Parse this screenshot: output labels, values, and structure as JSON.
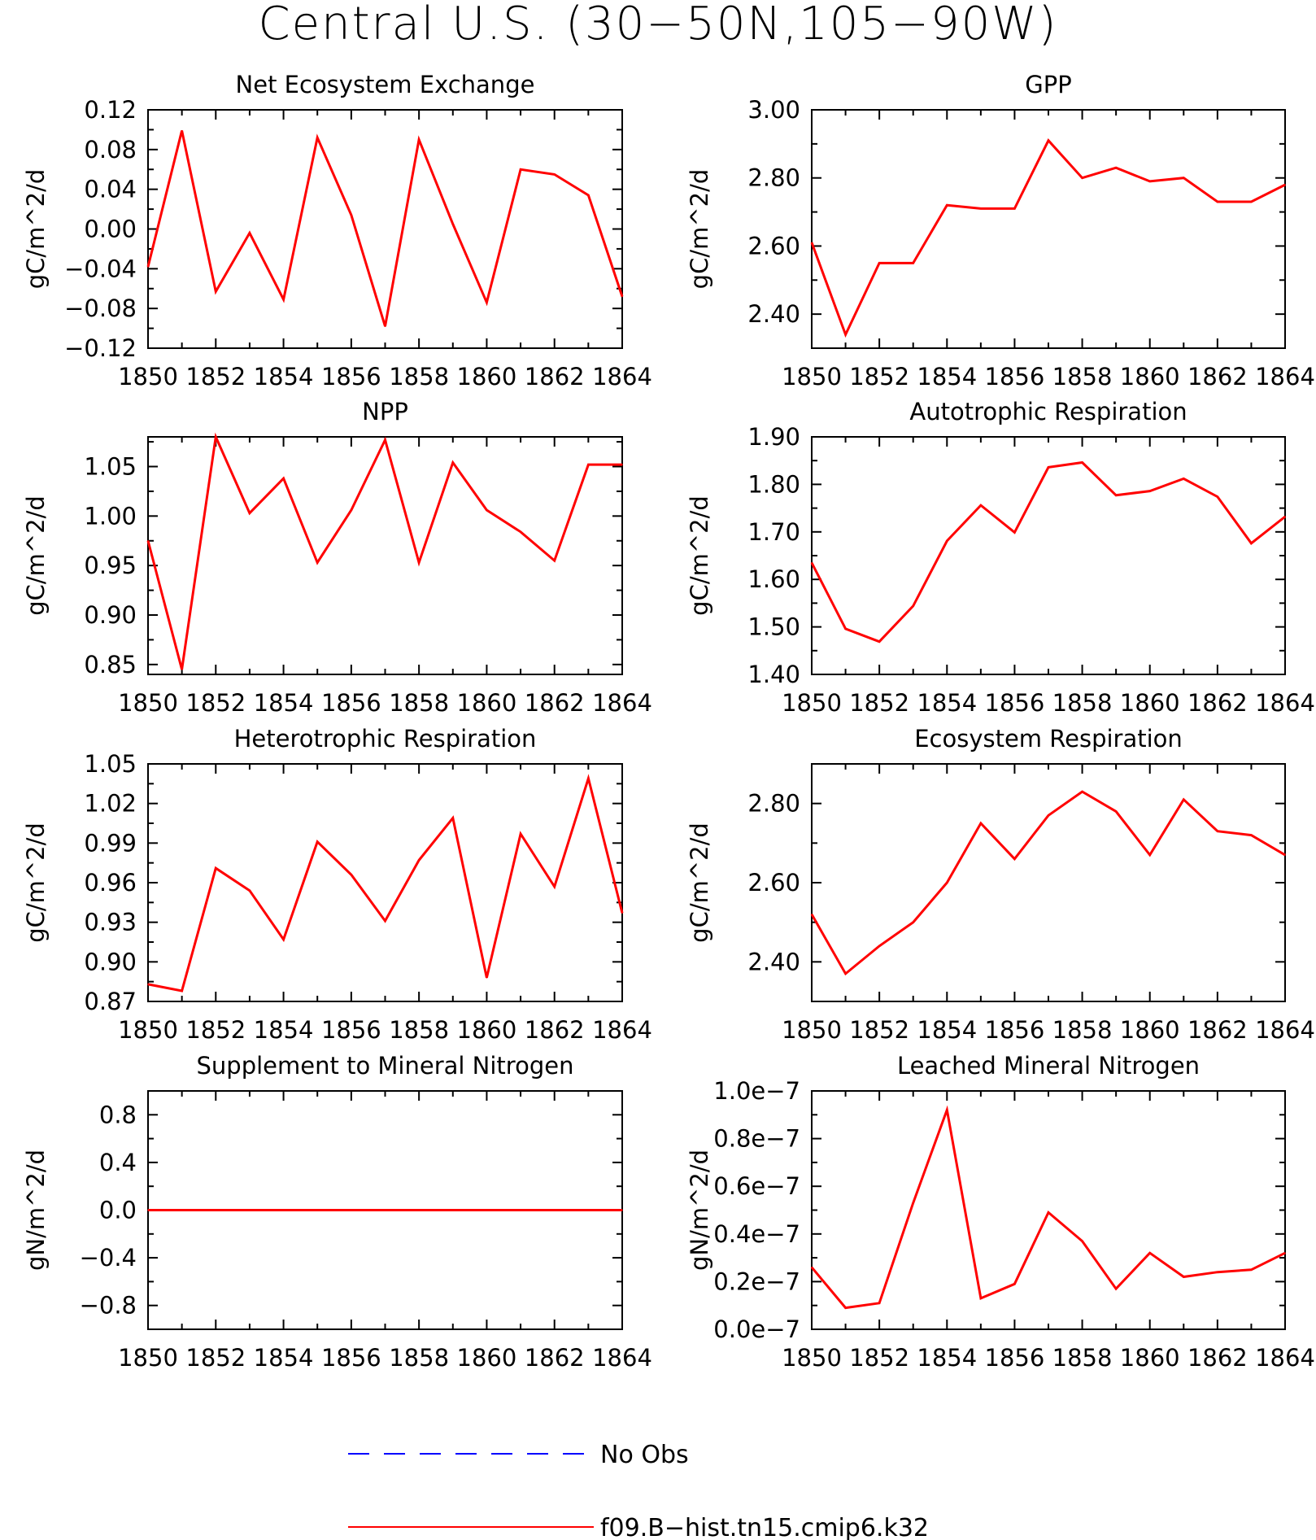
{
  "title": "Central U.S. (30−50N,105−90W)",
  "legend": {
    "items": [
      {
        "label": "No Obs",
        "color": "#0000ff",
        "dash": true
      },
      {
        "label": "f09.B−hist.tn15.cmip6.k32",
        "color": "#ff0000",
        "dash": false
      }
    ]
  },
  "chart_data": [
    {
      "type": "line",
      "title": "Net Ecosystem Exchange",
      "ylabel": "gC/m^2/d",
      "xlim": [
        1850,
        1864
      ],
      "ylim": [
        -0.12,
        0.12
      ],
      "xticks": [
        "1850",
        "1852",
        "1854",
        "1856",
        "1858",
        "1860",
        "1862",
        "1864"
      ],
      "yticks": [
        {
          "v": 0.12,
          "l": "0.12"
        },
        {
          "v": 0.08,
          "l": "0.08"
        },
        {
          "v": 0.04,
          "l": "0.04"
        },
        {
          "v": 0.0,
          "l": "0.00"
        },
        {
          "v": -0.04,
          "l": "−0.04"
        },
        {
          "v": -0.08,
          "l": "−0.08"
        },
        {
          "v": -0.12,
          "l": "−0.12"
        }
      ],
      "series": [
        {
          "color": "#ff0000",
          "x": [
            1850,
            1851,
            1852,
            1853,
            1854,
            1855,
            1856,
            1857,
            1858,
            1859,
            1860,
            1861,
            1862,
            1863,
            1864
          ],
          "y": [
            -0.038,
            0.099,
            -0.063,
            -0.004,
            -0.071,
            0.092,
            0.014,
            -0.098,
            0.09,
            0.005,
            -0.074,
            0.06,
            0.055,
            0.034,
            -0.068
          ]
        }
      ]
    },
    {
      "type": "line",
      "title": "GPP",
      "ylabel": "gC/m^2/d",
      "xlim": [
        1850,
        1864
      ],
      "ylim": [
        2.3,
        3.0
      ],
      "xticks": [
        "1850",
        "1852",
        "1854",
        "1856",
        "1858",
        "1860",
        "1862",
        "1864"
      ],
      "yticks": [
        {
          "v": 3.0,
          "l": "3.00"
        },
        {
          "v": 2.8,
          "l": "2.80"
        },
        {
          "v": 2.6,
          "l": "2.60"
        },
        {
          "v": 2.4,
          "l": "2.40"
        }
      ],
      "series": [
        {
          "color": "#ff0000",
          "x": [
            1850,
            1851,
            1852,
            1853,
            1854,
            1855,
            1856,
            1857,
            1858,
            1859,
            1860,
            1861,
            1862,
            1863,
            1864
          ],
          "y": [
            2.61,
            2.34,
            2.55,
            2.55,
            2.72,
            2.71,
            2.71,
            2.91,
            2.8,
            2.83,
            2.79,
            2.8,
            2.73,
            2.73,
            2.78
          ]
        }
      ]
    },
    {
      "type": "line",
      "title": "NPP",
      "ylabel": "gC/m^2/d",
      "xlim": [
        1850,
        1864
      ],
      "ylim": [
        0.84,
        1.08
      ],
      "xticks": [
        "1850",
        "1852",
        "1854",
        "1856",
        "1858",
        "1860",
        "1862",
        "1864"
      ],
      "yticks": [
        {
          "v": 1.05,
          "l": "1.05"
        },
        {
          "v": 1.0,
          "l": "1.00"
        },
        {
          "v": 0.95,
          "l": "0.95"
        },
        {
          "v": 0.9,
          "l": "0.90"
        },
        {
          "v": 0.85,
          "l": "0.85"
        }
      ],
      "series": [
        {
          "color": "#ff0000",
          "x": [
            1850,
            1851,
            1852,
            1853,
            1854,
            1855,
            1856,
            1857,
            1858,
            1859,
            1860,
            1861,
            1862,
            1863,
            1864
          ],
          "y": [
            0.975,
            0.845,
            1.08,
            1.003,
            1.038,
            0.953,
            1.006,
            1.077,
            0.953,
            1.054,
            1.006,
            0.984,
            0.955,
            1.052,
            1.052
          ]
        }
      ]
    },
    {
      "type": "line",
      "title": "Autotrophic Respiration",
      "ylabel": "gC/m^2/d",
      "xlim": [
        1850,
        1864
      ],
      "ylim": [
        1.4,
        1.9
      ],
      "xticks": [
        "1850",
        "1852",
        "1854",
        "1856",
        "1858",
        "1860",
        "1862",
        "1864"
      ],
      "yticks": [
        {
          "v": 1.9,
          "l": "1.90"
        },
        {
          "v": 1.8,
          "l": "1.80"
        },
        {
          "v": 1.7,
          "l": "1.70"
        },
        {
          "v": 1.6,
          "l": "1.60"
        },
        {
          "v": 1.5,
          "l": "1.50"
        },
        {
          "v": 1.4,
          "l": "1.40"
        }
      ],
      "series": [
        {
          "color": "#ff0000",
          "x": [
            1850,
            1851,
            1852,
            1853,
            1854,
            1855,
            1856,
            1857,
            1858,
            1859,
            1860,
            1861,
            1862,
            1863,
            1864
          ],
          "y": [
            1.635,
            1.496,
            1.469,
            1.544,
            1.681,
            1.756,
            1.699,
            1.836,
            1.846,
            1.777,
            1.786,
            1.812,
            1.774,
            1.676,
            1.732
          ]
        }
      ]
    },
    {
      "type": "line",
      "title": "Heterotrophic Respiration",
      "ylabel": "gC/m^2/d",
      "xlim": [
        1850,
        1864
      ],
      "ylim": [
        0.87,
        1.05
      ],
      "xticks": [
        "1850",
        "1852",
        "1854",
        "1856",
        "1858",
        "1860",
        "1862",
        "1864"
      ],
      "yticks": [
        {
          "v": 1.05,
          "l": "1.05"
        },
        {
          "v": 1.02,
          "l": "1.02"
        },
        {
          "v": 0.99,
          "l": "0.99"
        },
        {
          "v": 0.96,
          "l": "0.96"
        },
        {
          "v": 0.93,
          "l": "0.93"
        },
        {
          "v": 0.9,
          "l": "0.90"
        },
        {
          "v": 0.87,
          "l": "0.87"
        }
      ],
      "series": [
        {
          "color": "#ff0000",
          "x": [
            1850,
            1851,
            1852,
            1853,
            1854,
            1855,
            1856,
            1857,
            1858,
            1859,
            1860,
            1861,
            1862,
            1863,
            1864
          ],
          "y": [
            0.883,
            0.878,
            0.971,
            0.954,
            0.917,
            0.991,
            0.966,
            0.931,
            0.977,
            1.009,
            0.888,
            0.997,
            0.957,
            1.039,
            0.937
          ]
        }
      ]
    },
    {
      "type": "line",
      "title": "Ecosystem Respiration",
      "ylabel": "gC/m^2/d",
      "xlim": [
        1850,
        1864
      ],
      "ylim": [
        2.3,
        2.9
      ],
      "xticks": [
        "1850",
        "1852",
        "1854",
        "1856",
        "1858",
        "1860",
        "1862",
        "1864"
      ],
      "yticks": [
        {
          "v": 2.8,
          "l": "2.80"
        },
        {
          "v": 2.6,
          "l": "2.60"
        },
        {
          "v": 2.4,
          "l": "2.40"
        }
      ],
      "series": [
        {
          "color": "#ff0000",
          "x": [
            1850,
            1851,
            1852,
            1853,
            1854,
            1855,
            1856,
            1857,
            1858,
            1859,
            1860,
            1861,
            1862,
            1863,
            1864
          ],
          "y": [
            2.52,
            2.37,
            2.44,
            2.5,
            2.6,
            2.75,
            2.66,
            2.77,
            2.83,
            2.78,
            2.67,
            2.81,
            2.73,
            2.72,
            2.67
          ]
        }
      ]
    },
    {
      "type": "line",
      "title": "Supplement to Mineral Nitrogen",
      "ylabel": "gN/m^2/d",
      "xlim": [
        1850,
        1864
      ],
      "ylim": [
        -1.0,
        1.0
      ],
      "xticks": [
        "1850",
        "1852",
        "1854",
        "1856",
        "1858",
        "1860",
        "1862",
        "1864"
      ],
      "yticks": [
        {
          "v": 0.8,
          "l": "0.8"
        },
        {
          "v": 0.4,
          "l": "0.4"
        },
        {
          "v": 0.0,
          "l": "0.0"
        },
        {
          "v": -0.4,
          "l": "−0.4"
        },
        {
          "v": -0.8,
          "l": "−0.8"
        }
      ],
      "series": [
        {
          "color": "#ff0000",
          "x": [
            1850,
            1851,
            1852,
            1853,
            1854,
            1855,
            1856,
            1857,
            1858,
            1859,
            1860,
            1861,
            1862,
            1863,
            1864
          ],
          "y": [
            0,
            0,
            0,
            0,
            0,
            0,
            0,
            0,
            0,
            0,
            0,
            0,
            0,
            0,
            0
          ]
        }
      ]
    },
    {
      "type": "line",
      "title": "Leached Mineral Nitrogen",
      "ylabel": "gN/m^2/d",
      "xlim": [
        1850,
        1864
      ],
      "ylim": [
        0,
        1e-07
      ],
      "xticks": [
        "1850",
        "1852",
        "1854",
        "1856",
        "1858",
        "1860",
        "1862",
        "1864"
      ],
      "yticks": [
        {
          "v": 1e-07,
          "l": "1.0e−7"
        },
        {
          "v": 8e-08,
          "l": "0.8e−7"
        },
        {
          "v": 6e-08,
          "l": "0.6e−7"
        },
        {
          "v": 4e-08,
          "l": "0.4e−7"
        },
        {
          "v": 2e-08,
          "l": "0.2e−7"
        },
        {
          "v": 0.0,
          "l": "0.0e−7"
        }
      ],
      "series": [
        {
          "color": "#ff0000",
          "x": [
            1850,
            1851,
            1852,
            1853,
            1854,
            1855,
            1856,
            1857,
            1858,
            1859,
            1860,
            1861,
            1862,
            1863,
            1864
          ],
          "y": [
            2.6e-08,
            9e-09,
            1.1e-08,
            5.3e-08,
            9.2e-08,
            1.3e-08,
            1.9e-08,
            4.9e-08,
            3.7e-08,
            1.7e-08,
            3.2e-08,
            2.2e-08,
            2.4e-08,
            2.5e-08,
            3.2e-08
          ]
        }
      ]
    }
  ]
}
